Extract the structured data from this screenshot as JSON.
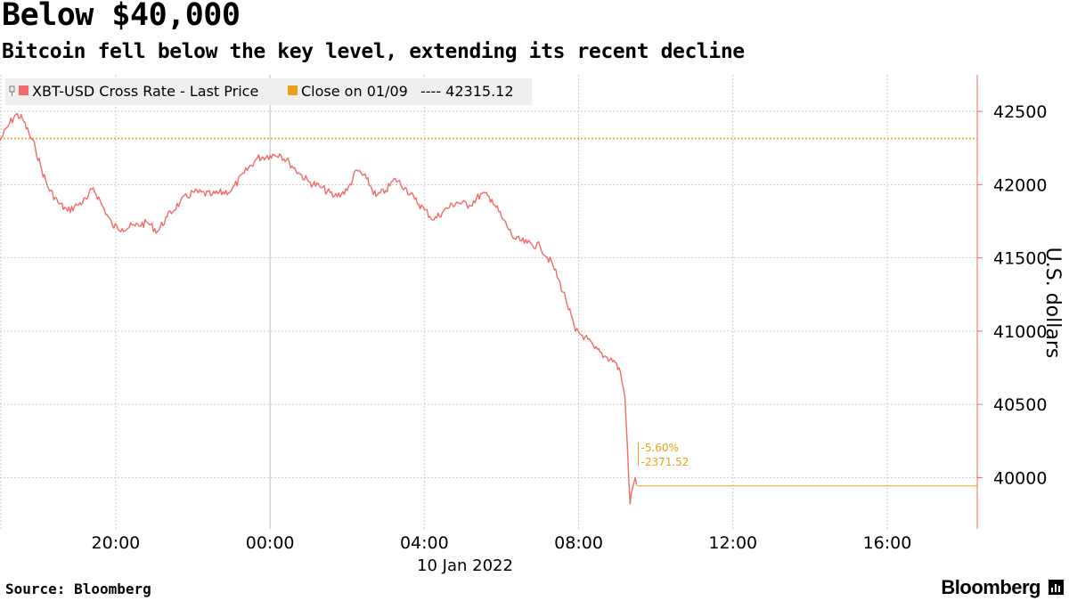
{
  "chart_data": {
    "type": "line",
    "title": "Below $40,000",
    "subtitle": "Bitcoin fell below the key level, extending its recent decline",
    "ylabel": "U.S. dollars",
    "xlabel": "",
    "date_label": "10 Jan 2022",
    "ylim": [
      39650,
      42750
    ],
    "y_ticks": [
      40000,
      40500,
      41000,
      41500,
      42000,
      42500
    ],
    "y_tick_labels": [
      "40000",
      "40500",
      "41000",
      "41500",
      "42000",
      "42500"
    ],
    "x_ticks": [
      "2022-01-09 20:00",
      "2022-01-10 00:00",
      "2022-01-10 04:00",
      "2022-01-10 08:00",
      "2022-01-10 12:00",
      "2022-01-10 16:00"
    ],
    "x_tick_labels": [
      "20:00",
      "00:00",
      "04:00",
      "08:00",
      "12:00",
      "16:00"
    ],
    "xlim": [
      "2022-01-09 17:00",
      "2022-01-10 18:20"
    ],
    "grid": true,
    "legend_position": "top-left",
    "series": [
      {
        "name": "XBT-USD Cross Rate - Last Price",
        "color": "#f26b6b",
        "points": [
          [
            "2022-01-09 17:00",
            42300
          ],
          [
            "2022-01-09 17:15",
            42420
          ],
          [
            "2022-01-09 17:25",
            42480
          ],
          [
            "2022-01-09 17:35",
            42450
          ],
          [
            "2022-01-09 17:45",
            42350
          ],
          [
            "2022-01-09 17:55",
            42250
          ],
          [
            "2022-01-09 18:05",
            42100
          ],
          [
            "2022-01-09 18:15",
            41980
          ],
          [
            "2022-01-09 18:30",
            41880
          ],
          [
            "2022-01-09 18:45",
            41820
          ],
          [
            "2022-01-09 19:00",
            41860
          ],
          [
            "2022-01-09 19:15",
            41900
          ],
          [
            "2022-01-09 19:25",
            41980
          ],
          [
            "2022-01-09 19:40",
            41850
          ],
          [
            "2022-01-09 19:55",
            41720
          ],
          [
            "2022-01-09 20:10",
            41700
          ],
          [
            "2022-01-09 20:30",
            41720
          ],
          [
            "2022-01-09 20:50",
            41740
          ],
          [
            "2022-01-09 21:05",
            41680
          ],
          [
            "2022-01-09 21:20",
            41780
          ],
          [
            "2022-01-09 21:40",
            41880
          ],
          [
            "2022-01-09 22:00",
            41950
          ],
          [
            "2022-01-09 22:30",
            41930
          ],
          [
            "2022-01-09 23:00",
            41960
          ],
          [
            "2022-01-09 23:20",
            42080
          ],
          [
            "2022-01-09 23:40",
            42180
          ],
          [
            "2022-01-10 00:00",
            42200
          ],
          [
            "2022-01-10 00:15",
            42210
          ],
          [
            "2022-01-10 00:30",
            42150
          ],
          [
            "2022-01-10 00:45",
            42080
          ],
          [
            "2022-01-10 01:00",
            42020
          ],
          [
            "2022-01-10 01:20",
            41980
          ],
          [
            "2022-01-10 01:40",
            41920
          ],
          [
            "2022-01-10 02:00",
            41960
          ],
          [
            "2022-01-10 02:15",
            42100
          ],
          [
            "2022-01-10 02:30",
            42040
          ],
          [
            "2022-01-10 02:45",
            41920
          ],
          [
            "2022-01-10 03:00",
            41960
          ],
          [
            "2022-01-10 03:15",
            42040
          ],
          [
            "2022-01-10 03:30",
            41980
          ],
          [
            "2022-01-10 03:45",
            41900
          ],
          [
            "2022-01-10 04:00",
            41830
          ],
          [
            "2022-01-10 04:15",
            41760
          ],
          [
            "2022-01-10 04:30",
            41820
          ],
          [
            "2022-01-10 04:50",
            41880
          ],
          [
            "2022-01-10 05:10",
            41860
          ],
          [
            "2022-01-10 05:30",
            41940
          ],
          [
            "2022-01-10 05:45",
            41900
          ],
          [
            "2022-01-10 06:00",
            41780
          ],
          [
            "2022-01-10 06:20",
            41630
          ],
          [
            "2022-01-10 06:40",
            41600
          ],
          [
            "2022-01-10 07:00",
            41580
          ],
          [
            "2022-01-10 07:20",
            41450
          ],
          [
            "2022-01-10 07:40",
            41220
          ],
          [
            "2022-01-10 07:55",
            41000
          ],
          [
            "2022-01-10 08:10",
            40960
          ],
          [
            "2022-01-10 08:25",
            40880
          ],
          [
            "2022-01-10 08:40",
            40830
          ],
          [
            "2022-01-10 08:55",
            40800
          ],
          [
            "2022-01-10 09:05",
            40720
          ],
          [
            "2022-01-10 09:12",
            40550
          ],
          [
            "2022-01-10 09:16",
            40200
          ],
          [
            "2022-01-10 09:20",
            39820
          ],
          [
            "2022-01-10 09:24",
            39930
          ],
          [
            "2022-01-10 09:28",
            40000
          ],
          [
            "2022-01-10 09:30",
            39950
          ]
        ]
      },
      {
        "name": "Close on 01/09",
        "legend_value": "---- 42315.12",
        "color": "#e8a317",
        "value": 42315.12
      }
    ],
    "annotations": [
      {
        "text": "-5.60%",
        "color": "#e8a317"
      },
      {
        "text": "-2371.52",
        "color": "#e8a317"
      }
    ],
    "last_value": 39943.6,
    "source": "Source: Bloomberg",
    "brand": "Bloomberg"
  }
}
